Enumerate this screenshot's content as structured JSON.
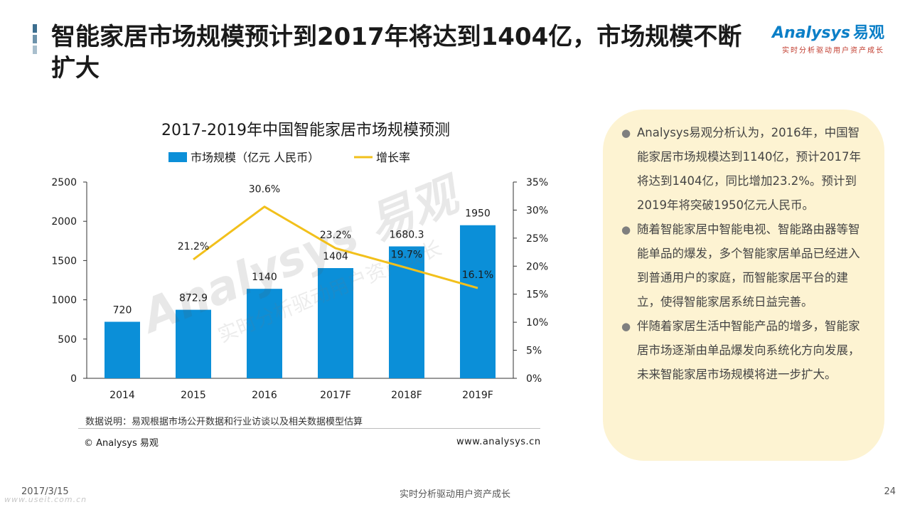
{
  "slide": {
    "title": "智能家居市场规模预计到2017年将达到1404亿，市场规模不断扩大",
    "logo_brand": "Analysys",
    "logo_cn": "易观",
    "logo_tagline": "实时分析驱动用户资产成长",
    "note": "数据说明：易观根据市场公开数据和行业访谈以及相关数据模型估算",
    "copyright": "© Analysys 易观",
    "website": "www.analysys.cn",
    "footer_date": "2017/3/15",
    "footer_watermark": "www.useit.com.cn",
    "footer_center": "实时分析驱动用户资产成长",
    "page_number": "24",
    "colors": {
      "bar": "#0b8fd8",
      "line": "#f2c01b",
      "panel": "#fdf3d2",
      "title_bar_dark": "#3c6e8f",
      "title_bar_light": "#9fb7c7"
    }
  },
  "panel": {
    "points": [
      "Analysys易观分析认为，2016年，中国智能家居市场规模达到1140亿，预计2017年将达到1404亿，同比增加23.2%。预计到2019年将突破1950亿元人民币。",
      "随着智能家居中智能电视、智能路由器等智能单品的爆发，多个智能家居单品已经进入到普通用户的家庭，而智能家居平台的建立，使得智能家居系统日益完善。",
      "伴随着家居生活中智能产品的增多，智能家居市场逐渐由单品爆发向系统化方向发展，未来智能家居市场规模将进一步扩大。"
    ]
  },
  "chart_data": {
    "type": "bar",
    "title": "2017-2019年中国智能家居市场规模预测",
    "categories": [
      "2014",
      "2015",
      "2016",
      "2017F",
      "2018F",
      "2019F"
    ],
    "series": [
      {
        "name": "市场规模（亿元 人民币）",
        "type": "bar",
        "axis": "left",
        "values": [
          720,
          872.9,
          1140,
          1404,
          1680.3,
          1950
        ],
        "labels": [
          "720",
          "872.9",
          "1140",
          "1404",
          "1680.3",
          "1950"
        ]
      },
      {
        "name": "增长率",
        "type": "line",
        "axis": "right",
        "values": [
          null,
          21.2,
          30.6,
          23.2,
          19.7,
          16.1
        ],
        "labels": [
          "",
          "21.2%",
          "30.6%",
          "23.2%",
          "19.7%",
          "16.1%"
        ]
      }
    ],
    "ylim_left": [
      0,
      2500
    ],
    "yticks_left": [
      "0",
      "500",
      "1000",
      "1500",
      "2000",
      "2500"
    ],
    "ylim_right": [
      0,
      35
    ],
    "yticks_right": [
      "0%",
      "5%",
      "10%",
      "15%",
      "20%",
      "25%",
      "30%",
      "35%"
    ],
    "grid": false,
    "legend_position": "top"
  }
}
